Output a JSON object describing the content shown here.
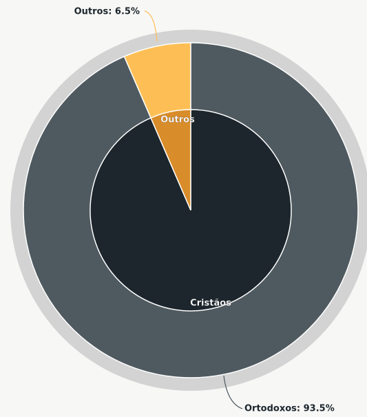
{
  "chart_data": {
    "type": "sunburst",
    "inner": {
      "categories": [
        "Cristãos",
        "Outros"
      ],
      "values": [
        93.5,
        6.5
      ],
      "colors": [
        "#1c262c",
        "#d98c2a"
      ]
    },
    "outer": {
      "values": [
        93.5,
        6.5
      ],
      "value_labels": [
        "Ortodoxos: 93.5%",
        "Outros: 6.5%"
      ],
      "colors": [
        "#4f5a60",
        "#fdbf55"
      ]
    }
  }
}
